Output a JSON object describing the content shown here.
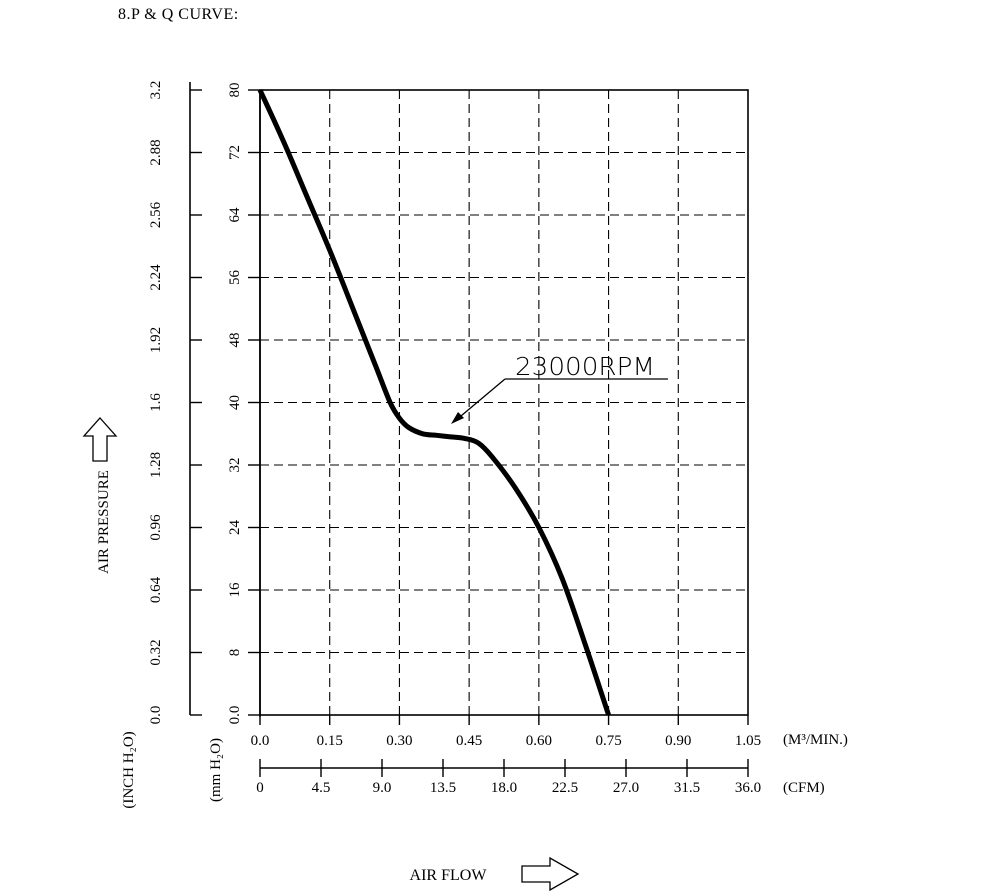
{
  "page": {
    "title": "8.P & Q CURVE:"
  },
  "chart_data": {
    "type": "line",
    "title": "",
    "annotation": "23000RPM",
    "xlabel": "AIR FLOW",
    "ylabel": "AIR PRESSURE",
    "x_unit_primary": "(M³/MIN.)",
    "x_unit_secondary": "(CFM)",
    "y_unit_inner": "(mm H₂O)",
    "y_unit_outer": "(INCH H₂O)",
    "xlim": [
      0,
      1.05
    ],
    "ylim": [
      0,
      80
    ],
    "grid": true,
    "x_ticks_m3min": [
      "0.0",
      "0.15",
      "0.30",
      "0.45",
      "0.60",
      "0.75",
      "0.90",
      "1.05"
    ],
    "x_ticks_cfm": [
      "0",
      "4.5",
      "9.0",
      "13.5",
      "18.0",
      "22.5",
      "27.0",
      "31.5",
      "36.0"
    ],
    "y_ticks_mmh2o": [
      "0.0",
      "8",
      "16",
      "24",
      "32",
      "40",
      "48",
      "56",
      "64",
      "72",
      "80"
    ],
    "y_ticks_inchh2o": [
      "0.0",
      "0.32",
      "0.64",
      "0.96",
      "1.28",
      "1.6",
      "1.92",
      "2.24",
      "2.56",
      "2.88",
      "3.2"
    ],
    "series": [
      {
        "name": "23000RPM",
        "color": "#000000",
        "x": [
          0.0,
          0.05,
          0.1,
          0.15,
          0.2,
          0.25,
          0.28,
          0.3,
          0.32,
          0.35,
          0.38,
          0.41,
          0.44,
          0.47,
          0.5,
          0.55,
          0.6,
          0.65,
          0.7,
          0.75
        ],
        "y": [
          80,
          73.5,
          66.5,
          59.5,
          52,
          44.5,
          40,
          38,
          36.8,
          36.0,
          35.8,
          35.6,
          35.4,
          34.8,
          33,
          29,
          24,
          17.5,
          9,
          0
        ]
      }
    ]
  }
}
